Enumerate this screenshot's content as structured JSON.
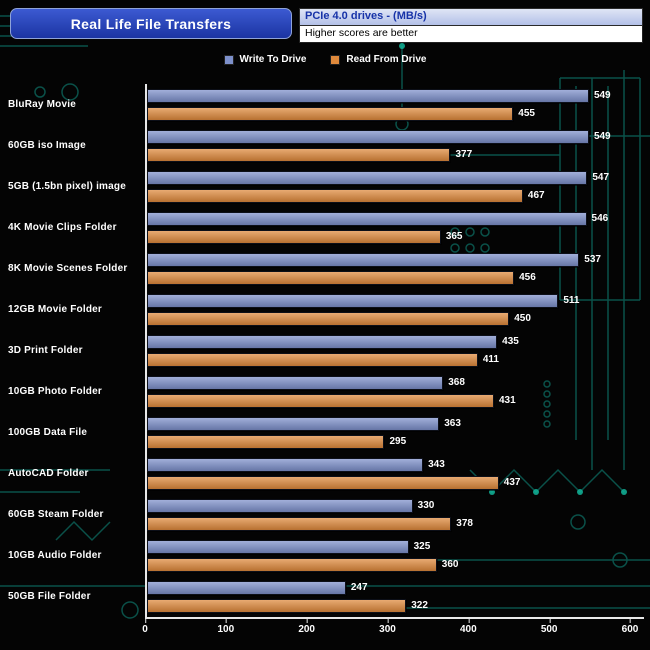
{
  "header": {
    "title": "Real Life File Transfers",
    "subtitle1": "PCIe 4.0 drives - (MB/s)",
    "subtitle2": "Higher scores are better"
  },
  "legend": [
    {
      "label": "Write To Drive",
      "color": "#7d90cb"
    },
    {
      "label": "Read From Drive",
      "color": "#e08a3c"
    }
  ],
  "colors": {
    "background": "#040404",
    "title_box_blue": "#2644bb",
    "axis": "#e8e8e8",
    "circuit_teal": "#0c5f56",
    "write_bar": "#7d90cb",
    "read_bar": "#e08a3c"
  },
  "chart_data": {
    "type": "bar",
    "orientation": "horizontal",
    "title": "Real Life File Transfers",
    "subtitle": "PCIe 4.0 drives - (MB/s) — Higher scores are better",
    "legend_position": "top",
    "grid": false,
    "xlim": [
      0,
      600
    ],
    "xticks": [
      0,
      100,
      200,
      300,
      400,
      500,
      600
    ],
    "categories": [
      "BluRay Movie",
      "60GB iso Image",
      "5GB (1.5bn pixel) image",
      "4K Movie Clips Folder",
      "8K Movie Scenes Folder",
      "12GB Movie Folder",
      "3D Print Folder",
      "10GB Photo Folder",
      "100GB Data File",
      "AutoCAD Folder",
      "60GB Steam Folder",
      "10GB Audio Folder",
      "50GB File Folder"
    ],
    "series": [
      {
        "name": "Write To Drive",
        "color": "#7d90cb",
        "values": [
          549,
          549,
          547,
          546,
          537,
          511,
          435,
          368,
          363,
          343,
          330,
          325,
          247
        ]
      },
      {
        "name": "Read From Drive",
        "color": "#e08a3c",
        "values": [
          455,
          377,
          467,
          365,
          456,
          450,
          411,
          431,
          295,
          437,
          378,
          360,
          322
        ]
      }
    ]
  }
}
